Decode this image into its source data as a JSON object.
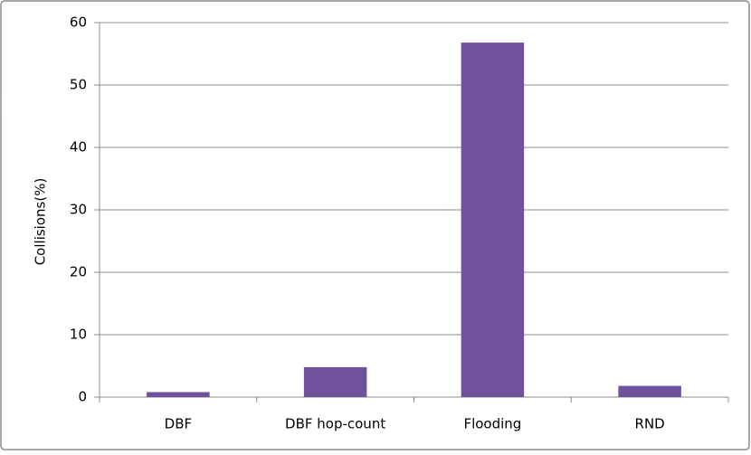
{
  "chart_data": {
    "type": "bar",
    "y_label": "Collisions(%)",
    "categories": [
      "DBF",
      "DBF hop-count",
      "Flooding",
      "RND"
    ],
    "values": [
      0.8,
      4.8,
      56.8,
      1.8
    ],
    "color": "#6f519c",
    "ylim": [
      0,
      60
    ],
    "yticks": [
      0,
      10,
      20,
      30,
      40,
      50,
      60
    ],
    "grid": true
  }
}
